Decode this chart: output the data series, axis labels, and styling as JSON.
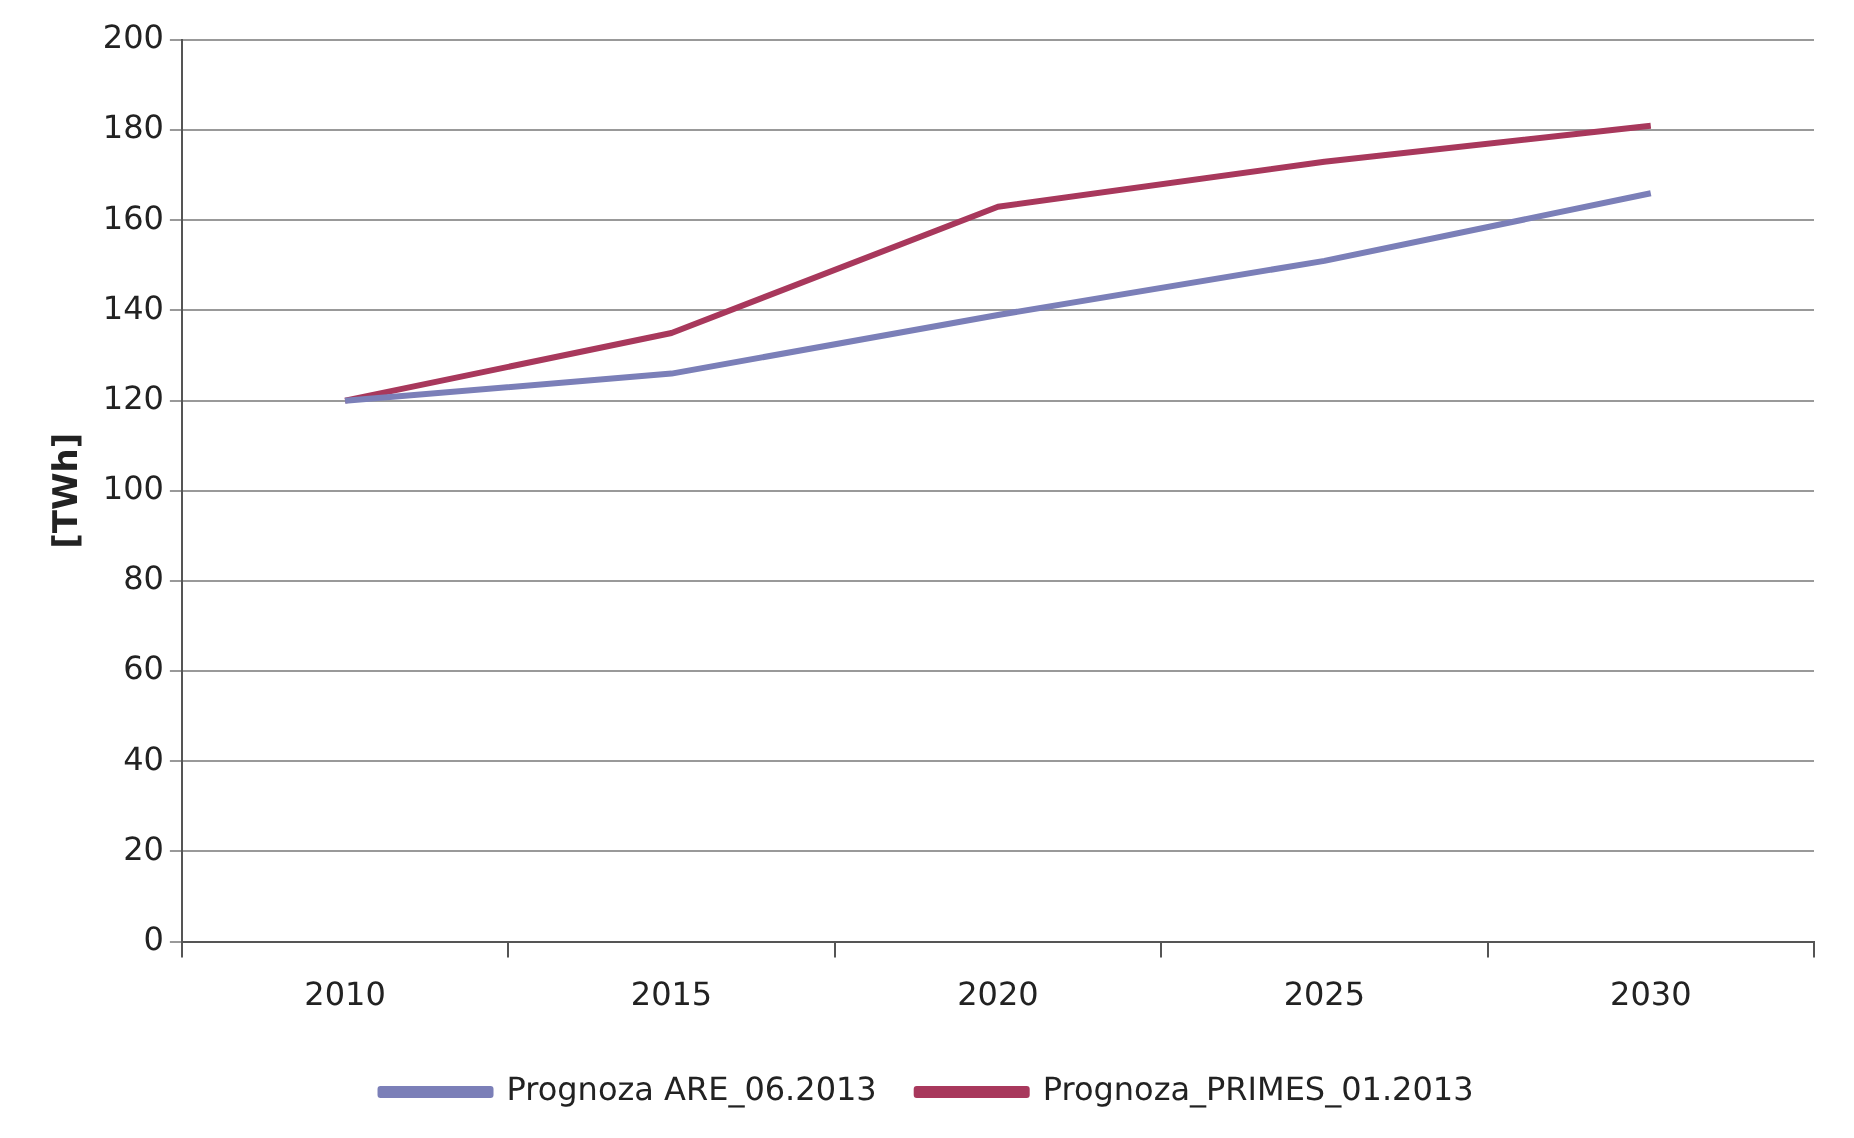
{
  "chart_data": {
    "type": "line",
    "ylabel": "[TWh]",
    "categories": [
      "2010",
      "2015",
      "2020",
      "2025",
      "2030"
    ],
    "series": [
      {
        "name": "Prognoza ARE_06.2013",
        "color": "#7b7fb8",
        "values": [
          120,
          126,
          139,
          151,
          166
        ]
      },
      {
        "name": "Prognoza_PRIMES_01.2013",
        "color": "#a8385c",
        "values": [
          120,
          135,
          163,
          173,
          181
        ]
      }
    ],
    "ylim": [
      0,
      200
    ],
    "yticks": [
      0,
      20,
      40,
      60,
      80,
      100,
      120,
      140,
      160,
      180,
      200
    ],
    "grid": "y",
    "legend": "bottom",
    "marker": "none",
    "line_style": "solid"
  }
}
